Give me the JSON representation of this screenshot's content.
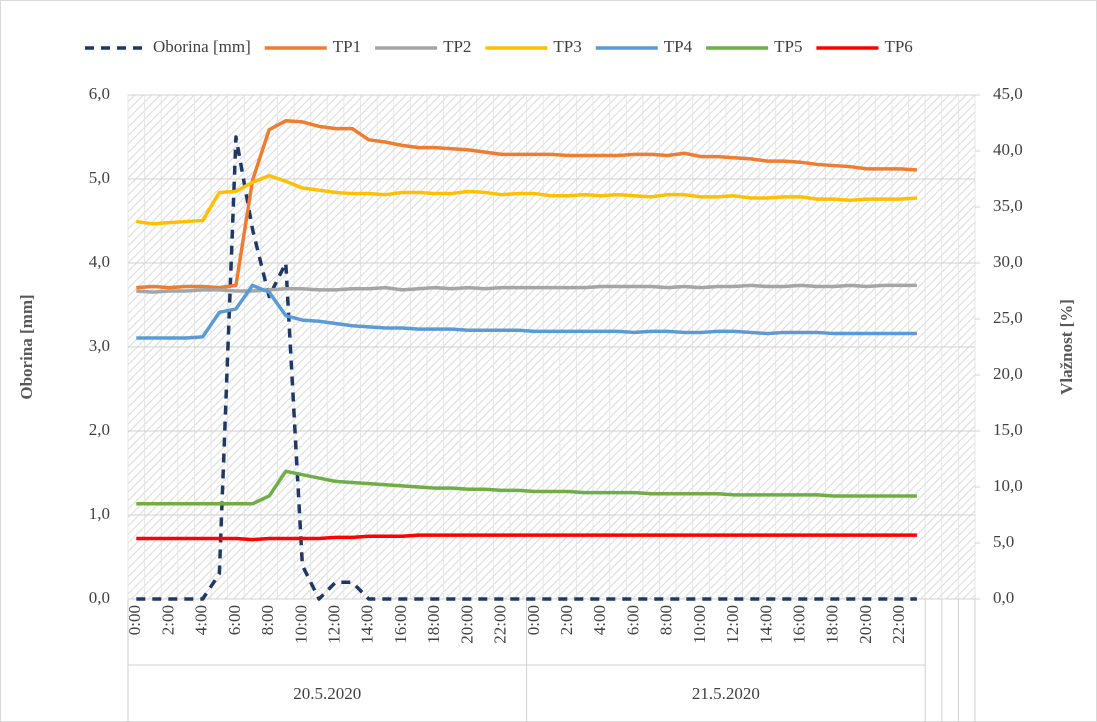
{
  "chart_data": {
    "type": "line",
    "y_label": "Oborina [mm]",
    "y2_label": "Vlažnost [%]",
    "categories": [
      "0:00",
      null,
      "2:00",
      null,
      "4:00",
      null,
      "6:00",
      null,
      "8:00",
      null,
      "10:00",
      null,
      "12:00",
      null,
      "14:00",
      null,
      "16:00",
      null,
      "18:00",
      null,
      "20:00",
      null,
      "22:00",
      null,
      "0:00",
      null,
      "2:00",
      null,
      "4:00",
      null,
      "6:00",
      null,
      "8:00",
      null,
      "10:00",
      null,
      "12:00",
      null,
      "14:00",
      null,
      "16:00",
      null,
      "18:00",
      null,
      "20:00",
      null,
      "22:00",
      null,
      null,
      null,
      null
    ],
    "groups": [
      "20.5.2020",
      "21.5.2020"
    ],
    "ylim": [
      0,
      6
    ],
    "yticks": [
      {
        "value": 0,
        "label": "0,0"
      },
      {
        "value": 1,
        "label": "1,0"
      },
      {
        "value": 2,
        "label": "2,0"
      },
      {
        "value": 3,
        "label": "3,0"
      },
      {
        "value": 4,
        "label": "4,0"
      },
      {
        "value": 5,
        "label": "5,0"
      },
      {
        "value": 6,
        "label": "6,0"
      }
    ],
    "y2lim": [
      0,
      45
    ],
    "y2ticks": [
      {
        "value": 0,
        "label": "0,0"
      },
      {
        "value": 5,
        "label": "5,0"
      },
      {
        "value": 10,
        "label": "10,0"
      },
      {
        "value": 15,
        "label": "15,0"
      },
      {
        "value": 20,
        "label": "20,0"
      },
      {
        "value": 25,
        "label": "25,0"
      },
      {
        "value": 30,
        "label": "30,0"
      },
      {
        "value": 35,
        "label": "35,0"
      },
      {
        "value": 40,
        "label": "40,0"
      },
      {
        "value": 45,
        "label": "45,0"
      }
    ],
    "grid": true,
    "legend": "top",
    "series": [
      {
        "name": "Oborina [mm]",
        "color": "#203864",
        "dashed": true,
        "axis": "y",
        "values": [
          0,
          0,
          0,
          0,
          0,
          0.3,
          5.5,
          4.4,
          3.6,
          4.0,
          0.4,
          0,
          0.2,
          0.2,
          0,
          0,
          0,
          0,
          0,
          0,
          0,
          0,
          0,
          0,
          0,
          0,
          0,
          0,
          0,
          0,
          0,
          0,
          0,
          0,
          0,
          0,
          0,
          0,
          0,
          0,
          0,
          0,
          0,
          0,
          0,
          0,
          0,
          0,
          null,
          null,
          null
        ]
      },
      {
        "name": "TP1",
        "color": "#ed7d31",
        "axis": "y2",
        "values": [
          27.8,
          27.9,
          27.8,
          27.9,
          27.9,
          27.8,
          28.0,
          37.4,
          41.9,
          42.7,
          42.6,
          42.2,
          42.0,
          42.0,
          41.0,
          40.8,
          40.5,
          40.3,
          40.3,
          40.2,
          40.1,
          39.9,
          39.7,
          39.7,
          39.7,
          39.7,
          39.6,
          39.6,
          39.6,
          39.6,
          39.7,
          39.7,
          39.6,
          39.8,
          39.5,
          39.5,
          39.4,
          39.3,
          39.1,
          39.1,
          39.0,
          38.8,
          38.7,
          38.6,
          38.4,
          38.4,
          38.4,
          38.3,
          null,
          null,
          null
        ]
      },
      {
        "name": "TP2",
        "color": "#a5a5a5",
        "axis": "y2",
        "values": [
          27.5,
          27.4,
          27.5,
          27.5,
          27.6,
          27.6,
          27.5,
          27.5,
          27.6,
          27.7,
          27.7,
          27.6,
          27.6,
          27.7,
          27.7,
          27.8,
          27.6,
          27.7,
          27.8,
          27.7,
          27.8,
          27.7,
          27.8,
          27.8,
          27.8,
          27.8,
          27.8,
          27.8,
          27.9,
          27.9,
          27.9,
          27.9,
          27.8,
          27.9,
          27.8,
          27.9,
          27.9,
          28.0,
          27.9,
          27.9,
          28.0,
          27.9,
          27.9,
          28.0,
          27.9,
          28.0,
          28.0,
          28.0,
          null,
          null,
          null
        ]
      },
      {
        "name": "TP3",
        "color": "#ffc000",
        "axis": "y2",
        "values": [
          33.7,
          33.5,
          33.6,
          33.7,
          33.8,
          36.3,
          36.4,
          37.2,
          37.8,
          37.3,
          36.7,
          36.5,
          36.3,
          36.2,
          36.2,
          36.1,
          36.3,
          36.3,
          36.2,
          36.2,
          36.4,
          36.3,
          36.1,
          36.2,
          36.2,
          36.0,
          36.0,
          36.1,
          36.0,
          36.1,
          36.0,
          35.9,
          36.1,
          36.1,
          35.9,
          35.9,
          36.0,
          35.8,
          35.8,
          35.9,
          35.9,
          35.7,
          35.7,
          35.6,
          35.7,
          35.7,
          35.7,
          35.8,
          null,
          null,
          null
        ]
      },
      {
        "name": "TP4",
        "color": "#5b9bd5",
        "axis": "y2",
        "values": [
          23.3,
          23.3,
          23.3,
          23.3,
          23.4,
          25.6,
          25.9,
          28.0,
          27.4,
          25.3,
          24.9,
          24.8,
          24.6,
          24.4,
          24.3,
          24.2,
          24.2,
          24.1,
          24.1,
          24.1,
          24.0,
          24.0,
          24.0,
          24.0,
          23.9,
          23.9,
          23.9,
          23.9,
          23.9,
          23.9,
          23.8,
          23.9,
          23.9,
          23.8,
          23.8,
          23.9,
          23.9,
          23.8,
          23.7,
          23.8,
          23.8,
          23.8,
          23.7,
          23.7,
          23.7,
          23.7,
          23.7,
          23.7,
          null,
          null,
          null
        ]
      },
      {
        "name": "TP5",
        "color": "#70ad47",
        "axis": "y2",
        "values": [
          8.5,
          8.5,
          8.5,
          8.5,
          8.5,
          8.5,
          8.5,
          8.5,
          9.2,
          11.4,
          11.1,
          10.8,
          10.5,
          10.4,
          10.3,
          10.2,
          10.1,
          10.0,
          9.9,
          9.9,
          9.8,
          9.8,
          9.7,
          9.7,
          9.6,
          9.6,
          9.6,
          9.5,
          9.5,
          9.5,
          9.5,
          9.4,
          9.4,
          9.4,
          9.4,
          9.4,
          9.3,
          9.3,
          9.3,
          9.3,
          9.3,
          9.3,
          9.2,
          9.2,
          9.2,
          9.2,
          9.2,
          9.2,
          null,
          null,
          null
        ]
      },
      {
        "name": "TP6",
        "color": "#ff0000",
        "axis": "y2",
        "values": [
          5.4,
          5.4,
          5.4,
          5.4,
          5.4,
          5.4,
          5.4,
          5.3,
          5.4,
          5.4,
          5.4,
          5.4,
          5.5,
          5.5,
          5.6,
          5.6,
          5.6,
          5.7,
          5.7,
          5.7,
          5.7,
          5.7,
          5.7,
          5.7,
          5.7,
          5.7,
          5.7,
          5.7,
          5.7,
          5.7,
          5.7,
          5.7,
          5.7,
          5.7,
          5.7,
          5.7,
          5.7,
          5.7,
          5.7,
          5.7,
          5.7,
          5.7,
          5.7,
          5.7,
          5.7,
          5.7,
          5.7,
          5.7,
          null,
          null,
          null
        ]
      }
    ]
  }
}
